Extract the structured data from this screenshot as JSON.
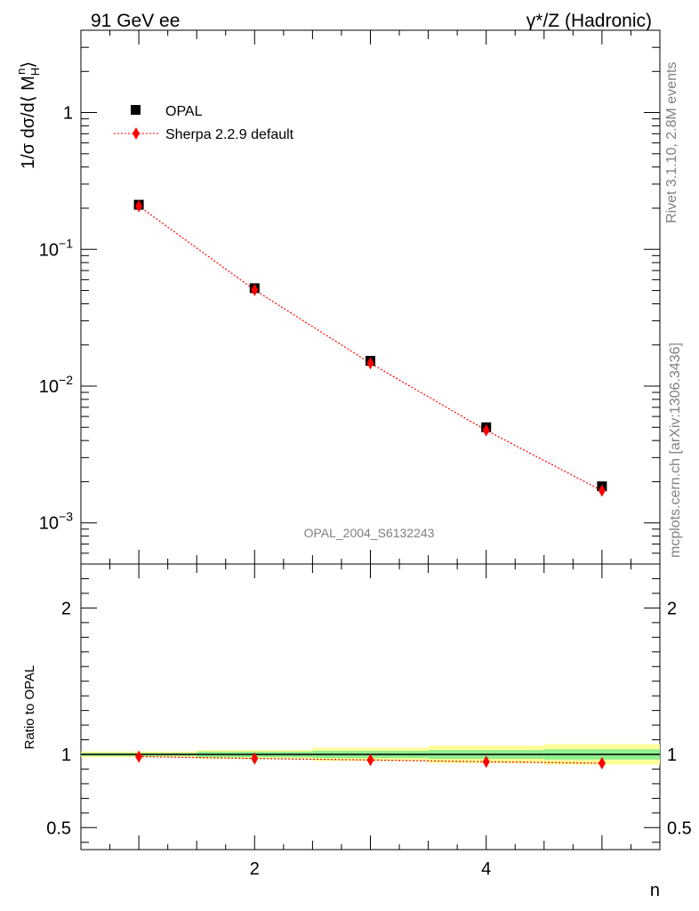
{
  "header": {
    "left": "91 GeV ee",
    "right": "γ*/Z (Hadronic)"
  },
  "side_labels": {
    "rivet": "Rivet 3.1.10,  2.8M events",
    "mcplots": "mcplots.cern.ch [arXiv:1306.3436]"
  },
  "watermark": "OPAL_2004_S6132243",
  "legend": {
    "data_label": "OPAL",
    "mc_label": "Sherpa 2.2.9 default"
  },
  "axes": {
    "y_main_label": "1/σ dσ/d⟨ M",
    "y_main_sub": "H",
    "y_main_sup": "n",
    "y_main_close": "⟩",
    "y_ratio_label": "Ratio to OPAL",
    "x_label": "n"
  },
  "colors": {
    "data": "#000000",
    "mc": "#ff0000",
    "band_inner": "#90ee90",
    "band_outer": "#ffff99"
  },
  "chart_data": [
    {
      "type": "scatter",
      "panel": "main",
      "yscale": "log",
      "xlim": [
        0.5,
        5.5
      ],
      "ylim": [
        0.0005,
        4
      ],
      "x_ticks": [
        2,
        4
      ],
      "y_tick_labels": [
        "10^-3",
        "10^-2",
        "10^-1",
        "1"
      ],
      "series": [
        {
          "name": "OPAL",
          "x": [
            1,
            2,
            3,
            4,
            5
          ],
          "y": [
            0.212,
            0.052,
            0.0153,
            0.005,
            0.00185
          ],
          "marker": "square"
        },
        {
          "name": "Sherpa 2.2.9 default",
          "x": [
            1,
            2,
            3,
            4,
            5
          ],
          "y": [
            0.207,
            0.0505,
            0.0147,
            0.00475,
            0.00172
          ],
          "marker": "diamond",
          "line": "dotted"
        }
      ]
    },
    {
      "type": "line",
      "panel": "ratio",
      "ylim": [
        0.35,
        2.3
      ],
      "y_ticks": [
        0.5,
        1,
        2
      ],
      "y_tick_labels": [
        "0.5",
        "1",
        "2"
      ],
      "band": {
        "x": [
          1,
          2,
          3,
          4,
          5
        ],
        "inner": [
          0.01,
          0.02,
          0.025,
          0.03,
          0.035
        ],
        "outer": [
          0.02,
          0.03,
          0.045,
          0.06,
          0.07
        ]
      },
      "series": [
        {
          "name": "Sherpa 2.2.9 default",
          "x": [
            1,
            2,
            3,
            4,
            5
          ],
          "y": [
            0.985,
            0.972,
            0.962,
            0.95,
            0.94
          ]
        }
      ]
    }
  ]
}
